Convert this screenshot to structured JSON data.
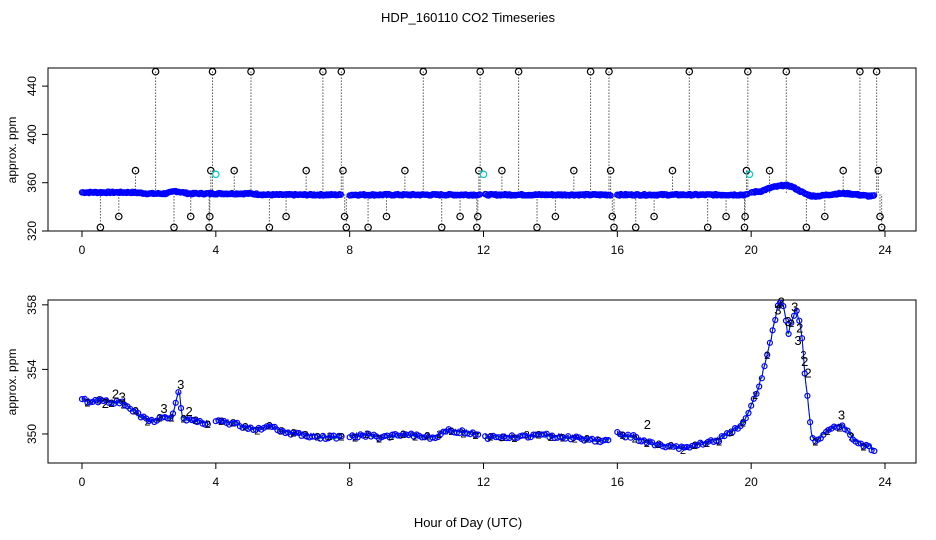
{
  "title": "HDP_160110  CO2 Timeseries",
  "xlabel": "Hour of Day (UTC)",
  "colors": {
    "blue": "#0000ff",
    "green": "#00cc00",
    "cyan": "#00cccc",
    "black": "#000000"
  },
  "chart_data": [
    {
      "type": "scatter",
      "ylabel": "approx. ppm",
      "xlim": [
        0,
        24
      ],
      "ylim": [
        320,
        455
      ],
      "xticks": [
        0,
        4,
        8,
        12,
        16,
        20,
        24
      ],
      "yticks": [
        320,
        360,
        400,
        440
      ],
      "grid": false,
      "main_series_segments": [
        {
          "x": [
            0.0,
            0.5,
            1.0,
            1.5,
            2.0,
            2.5,
            2.8,
            3.2,
            3.5,
            4.0,
            4.5,
            5.0,
            5.5,
            6.0,
            6.5,
            7.0,
            7.5,
            7.75
          ],
          "y": [
            352,
            352,
            352,
            352,
            351,
            351,
            353,
            351,
            351,
            351,
            351,
            351,
            350,
            350,
            350,
            350,
            350,
            350
          ]
        },
        {
          "x": [
            8.0,
            8.5,
            9.0,
            9.5,
            10.0,
            10.5,
            11.0,
            11.5,
            11.9
          ],
          "y": [
            350,
            350,
            350,
            350,
            350,
            350,
            350,
            350,
            350
          ]
        },
        {
          "x": [
            12.05,
            12.5,
            13.0,
            13.5,
            14.0,
            14.5,
            15.0,
            15.5,
            15.8
          ],
          "y": [
            350,
            350,
            350,
            350,
            350,
            350,
            350,
            350,
            350
          ]
        },
        {
          "x": [
            16.0,
            16.5,
            17.0,
            17.5,
            18.0,
            18.5,
            19.0,
            19.5,
            19.9
          ],
          "y": [
            350,
            350,
            350,
            350,
            350,
            350,
            350,
            350,
            350
          ]
        },
        {
          "x": [
            20.0,
            20.3,
            20.6,
            20.8,
            21.0,
            21.2,
            21.4,
            21.6,
            21.8,
            22.0,
            22.3,
            22.6,
            22.9,
            23.2,
            23.5,
            23.7
          ],
          "y": [
            352,
            353,
            356,
            357,
            358,
            357,
            354,
            351,
            349,
            349,
            350,
            351,
            351,
            350,
            349,
            349
          ]
        }
      ],
      "outliers": [
        {
          "x": 0.55,
          "y": 323
        },
        {
          "x": 1.1,
          "y": 332
        },
        {
          "x": 1.6,
          "y": 370
        },
        {
          "x": 2.2,
          "y": 452
        },
        {
          "x": 2.75,
          "y": 323
        },
        {
          "x": 3.25,
          "y": 332
        },
        {
          "x": 3.8,
          "y": 323
        },
        {
          "x": 3.82,
          "y": 332
        },
        {
          "x": 3.85,
          "y": 370
        },
        {
          "x": 3.9,
          "y": 452
        },
        {
          "x": 4.55,
          "y": 370
        },
        {
          "x": 5.05,
          "y": 452
        },
        {
          "x": 5.6,
          "y": 323
        },
        {
          "x": 6.1,
          "y": 332
        },
        {
          "x": 6.7,
          "y": 370
        },
        {
          "x": 7.2,
          "y": 452
        },
        {
          "x": 7.75,
          "y": 452
        },
        {
          "x": 7.8,
          "y": 370
        },
        {
          "x": 7.85,
          "y": 332
        },
        {
          "x": 7.9,
          "y": 323
        },
        {
          "x": 8.55,
          "y": 323
        },
        {
          "x": 9.1,
          "y": 332
        },
        {
          "x": 9.65,
          "y": 370
        },
        {
          "x": 10.2,
          "y": 452
        },
        {
          "x": 10.75,
          "y": 323
        },
        {
          "x": 11.3,
          "y": 332
        },
        {
          "x": 11.8,
          "y": 323
        },
        {
          "x": 11.83,
          "y": 332
        },
        {
          "x": 11.86,
          "y": 370
        },
        {
          "x": 11.9,
          "y": 452
        },
        {
          "x": 12.55,
          "y": 370
        },
        {
          "x": 13.05,
          "y": 452
        },
        {
          "x": 13.6,
          "y": 323
        },
        {
          "x": 14.15,
          "y": 332
        },
        {
          "x": 14.7,
          "y": 370
        },
        {
          "x": 15.2,
          "y": 452
        },
        {
          "x": 15.75,
          "y": 452
        },
        {
          "x": 15.8,
          "y": 370
        },
        {
          "x": 15.85,
          "y": 332
        },
        {
          "x": 15.9,
          "y": 323
        },
        {
          "x": 16.55,
          "y": 323
        },
        {
          "x": 17.1,
          "y": 332
        },
        {
          "x": 17.65,
          "y": 370
        },
        {
          "x": 18.15,
          "y": 452
        },
        {
          "x": 18.7,
          "y": 323
        },
        {
          "x": 19.25,
          "y": 332
        },
        {
          "x": 19.8,
          "y": 323
        },
        {
          "x": 19.82,
          "y": 332
        },
        {
          "x": 19.86,
          "y": 370
        },
        {
          "x": 19.9,
          "y": 452
        },
        {
          "x": 20.55,
          "y": 370
        },
        {
          "x": 21.05,
          "y": 452
        },
        {
          "x": 21.65,
          "y": 323
        },
        {
          "x": 22.2,
          "y": 332
        },
        {
          "x": 22.75,
          "y": 370
        },
        {
          "x": 23.25,
          "y": 452
        },
        {
          "x": 23.75,
          "y": 452
        },
        {
          "x": 23.8,
          "y": 370
        },
        {
          "x": 23.85,
          "y": 332
        },
        {
          "x": 23.9,
          "y": 323
        }
      ],
      "cyan_points": [
        {
          "x": 4.0,
          "y": 367
        },
        {
          "x": 12.0,
          "y": 367
        },
        {
          "x": 19.95,
          "y": 367
        }
      ]
    },
    {
      "type": "line",
      "ylabel": "approx. ppm",
      "xlim": [
        0,
        24
      ],
      "ylim": [
        348.2,
        358.3
      ],
      "xticks": [
        0,
        4,
        8,
        12,
        16,
        20,
        24
      ],
      "yticks": [
        350,
        354,
        358
      ],
      "grid": false,
      "series": [
        {
          "segments": [
            {
              "x": [
                0.0,
                0.3,
                0.6,
                0.9,
                1.2,
                1.5,
                1.8,
                2.1,
                2.4,
                2.7,
                2.9,
                3.0,
                3.3,
                3.6,
                3.8
              ],
              "y": [
                352.1,
                352.0,
                352.1,
                352.0,
                351.9,
                351.5,
                351.0,
                350.8,
                351.0,
                351.0,
                352.7,
                351.0,
                350.8,
                350.7,
                350.7
              ]
            },
            {
              "x": [
                4.0,
                4.4,
                4.8,
                5.2,
                5.6,
                6.0,
                6.4,
                6.8,
                7.2,
                7.6,
                7.8
              ],
              "y": [
                350.9,
                350.7,
                350.5,
                350.3,
                350.5,
                350.2,
                350.0,
                349.9,
                349.8,
                349.8,
                349.9
              ]
            },
            {
              "x": [
                8.0,
                8.5,
                9.0,
                9.5,
                10.0,
                10.5,
                11.0,
                11.5,
                11.9
              ],
              "y": [
                349.9,
                349.9,
                349.8,
                349.9,
                349.9,
                349.8,
                350.2,
                350.1,
                350.0
              ]
            },
            {
              "x": [
                12.05,
                12.5,
                13.0,
                13.5,
                14.0,
                14.5,
                15.0,
                15.5,
                15.8
              ],
              "y": [
                349.8,
                349.8,
                349.8,
                349.9,
                349.9,
                349.8,
                349.7,
                349.6,
                349.6
              ]
            },
            {
              "x": [
                16.0,
                16.5,
                17.0,
                17.5,
                18.0,
                18.5,
                19.0,
                19.5,
                19.8,
                20.0,
                20.2,
                20.4,
                20.6,
                20.8,
                20.9,
                21.0,
                21.1,
                21.2,
                21.35,
                21.5,
                21.6,
                21.7,
                21.8,
                21.95,
                22.1,
                22.4,
                22.7,
                22.9,
                23.1,
                23.3,
                23.5,
                23.7
              ],
              "y": [
                350.0,
                349.8,
                349.4,
                349.2,
                349.1,
                349.4,
                349.6,
                350.2,
                350.8,
                351.7,
                352.8,
                354.1,
                355.9,
                357.9,
                358.1,
                357.6,
                356.0,
                357.0,
                357.7,
                356.4,
                353.8,
                351.9,
                350.0,
                349.5,
                349.9,
                350.3,
                350.5,
                350.1,
                349.6,
                349.3,
                349.2,
                349.0
              ]
            }
          ]
        }
      ],
      "labels_3": [
        {
          "x": 2.45,
          "y": 351.3
        },
        {
          "x": 2.95,
          "y": 352.8
        },
        {
          "x": 21.1,
          "y": 356.7
        },
        {
          "x": 21.3,
          "y": 357.6
        },
        {
          "x": 21.4,
          "y": 355.5
        },
        {
          "x": 22.7,
          "y": 350.9
        },
        {
          "x": 1.2,
          "y": 352.0
        },
        {
          "x": 20.8,
          "y": 357.4
        }
      ],
      "labels_2": [
        {
          "x": 0.7,
          "y": 351.6
        },
        {
          "x": 1.0,
          "y": 352.2
        },
        {
          "x": 3.2,
          "y": 351.1
        },
        {
          "x": 16.9,
          "y": 350.3
        },
        {
          "x": 20.9,
          "y": 357.9
        },
        {
          "x": 21.45,
          "y": 356.3
        },
        {
          "x": 21.6,
          "y": 354.2
        },
        {
          "x": 21.7,
          "y": 353.5
        }
      ]
    }
  ]
}
